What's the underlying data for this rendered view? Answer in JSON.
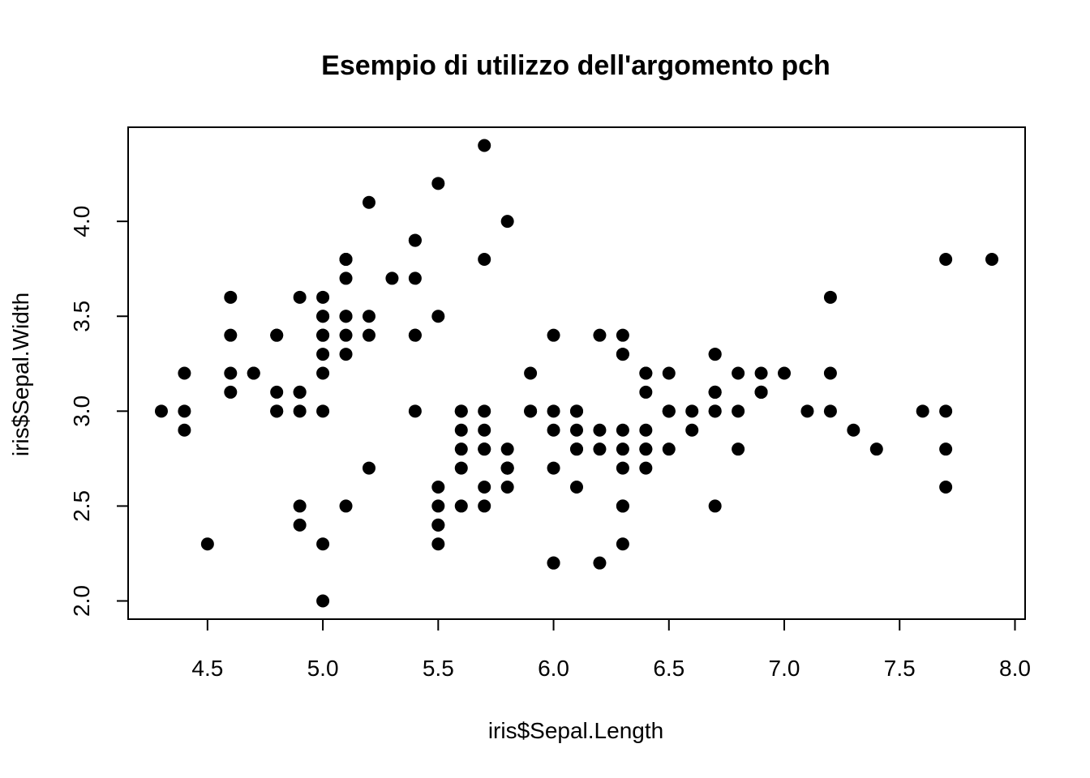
{
  "chart_data": {
    "type": "scatter",
    "title": "Esempio di utilizzo dell'argomento pch",
    "xlabel": "iris$Sepal.Length",
    "ylabel": "iris$Sepal.Width",
    "xlim": [
      4.3,
      7.9
    ],
    "ylim": [
      2.0,
      4.4
    ],
    "x_ticks": [
      4.5,
      5.0,
      5.5,
      6.0,
      6.5,
      7.0,
      7.5,
      8.0
    ],
    "x_tick_labels": [
      "4.5",
      "5.0",
      "5.5",
      "6.0",
      "6.5",
      "7.0",
      "7.5",
      "8.0"
    ],
    "y_ticks": [
      2.0,
      2.5,
      3.0,
      3.5,
      4.0
    ],
    "y_tick_labels": [
      "2.0",
      "2.5",
      "3.0",
      "3.5",
      "4.0"
    ],
    "grid": false,
    "marker": "filled-circle",
    "marker_color": "#000000",
    "points": [
      [
        5.1,
        3.5
      ],
      [
        4.9,
        3.0
      ],
      [
        4.7,
        3.2
      ],
      [
        4.6,
        3.1
      ],
      [
        5.0,
        3.6
      ],
      [
        5.4,
        3.9
      ],
      [
        4.6,
        3.4
      ],
      [
        5.0,
        3.4
      ],
      [
        4.4,
        2.9
      ],
      [
        4.9,
        3.1
      ],
      [
        5.4,
        3.7
      ],
      [
        4.8,
        3.4
      ],
      [
        4.8,
        3.0
      ],
      [
        4.3,
        3.0
      ],
      [
        5.8,
        4.0
      ],
      [
        5.7,
        4.4
      ],
      [
        5.4,
        3.9
      ],
      [
        5.1,
        3.5
      ],
      [
        5.7,
        3.8
      ],
      [
        5.1,
        3.8
      ],
      [
        5.4,
        3.4
      ],
      [
        5.1,
        3.7
      ],
      [
        4.6,
        3.6
      ],
      [
        5.1,
        3.3
      ],
      [
        4.8,
        3.4
      ],
      [
        5.0,
        3.0
      ],
      [
        5.0,
        3.4
      ],
      [
        5.2,
        3.5
      ],
      [
        5.2,
        3.4
      ],
      [
        4.7,
        3.2
      ],
      [
        4.8,
        3.1
      ],
      [
        5.4,
        3.4
      ],
      [
        5.2,
        4.1
      ],
      [
        5.5,
        4.2
      ],
      [
        4.9,
        3.1
      ],
      [
        5.0,
        3.2
      ],
      [
        5.5,
        3.5
      ],
      [
        4.9,
        3.6
      ],
      [
        4.4,
        3.0
      ],
      [
        5.1,
        3.4
      ],
      [
        5.0,
        3.5
      ],
      [
        4.5,
        2.3
      ],
      [
        4.4,
        3.2
      ],
      [
        5.0,
        3.5
      ],
      [
        5.1,
        3.8
      ],
      [
        4.8,
        3.0
      ],
      [
        5.1,
        3.8
      ],
      [
        4.6,
        3.2
      ],
      [
        5.3,
        3.7
      ],
      [
        5.0,
        3.3
      ],
      [
        7.0,
        3.2
      ],
      [
        6.4,
        3.2
      ],
      [
        6.9,
        3.1
      ],
      [
        5.5,
        2.3
      ],
      [
        6.5,
        2.8
      ],
      [
        5.7,
        2.8
      ],
      [
        6.3,
        3.3
      ],
      [
        4.9,
        2.4
      ],
      [
        6.6,
        2.9
      ],
      [
        5.2,
        2.7
      ],
      [
        5.0,
        2.0
      ],
      [
        5.9,
        3.0
      ],
      [
        6.0,
        2.2
      ],
      [
        6.1,
        2.9
      ],
      [
        5.6,
        2.9
      ],
      [
        6.7,
        3.1
      ],
      [
        5.6,
        3.0
      ],
      [
        5.8,
        2.7
      ],
      [
        6.2,
        2.2
      ],
      [
        5.6,
        2.5
      ],
      [
        5.9,
        3.2
      ],
      [
        6.1,
        2.8
      ],
      [
        6.3,
        2.5
      ],
      [
        6.1,
        2.8
      ],
      [
        6.4,
        2.9
      ],
      [
        6.6,
        3.0
      ],
      [
        6.8,
        2.8
      ],
      [
        6.7,
        3.0
      ],
      [
        6.0,
        2.9
      ],
      [
        5.7,
        2.6
      ],
      [
        5.5,
        2.4
      ],
      [
        5.5,
        2.4
      ],
      [
        5.8,
        2.7
      ],
      [
        6.0,
        2.7
      ],
      [
        5.4,
        3.0
      ],
      [
        6.0,
        3.4
      ],
      [
        6.7,
        3.1
      ],
      [
        6.3,
        2.3
      ],
      [
        5.6,
        3.0
      ],
      [
        5.5,
        2.5
      ],
      [
        5.5,
        2.6
      ],
      [
        6.1,
        3.0
      ],
      [
        5.8,
        2.6
      ],
      [
        5.0,
        2.3
      ],
      [
        5.6,
        2.7
      ],
      [
        5.7,
        3.0
      ],
      [
        5.7,
        2.9
      ],
      [
        6.2,
        2.9
      ],
      [
        5.1,
        2.5
      ],
      [
        5.7,
        2.8
      ],
      [
        6.3,
        3.3
      ],
      [
        5.8,
        2.7
      ],
      [
        7.1,
        3.0
      ],
      [
        6.3,
        2.9
      ],
      [
        6.5,
        3.0
      ],
      [
        7.6,
        3.0
      ],
      [
        4.9,
        2.5
      ],
      [
        7.3,
        2.9
      ],
      [
        6.7,
        2.5
      ],
      [
        7.2,
        3.6
      ],
      [
        6.5,
        3.2
      ],
      [
        6.4,
        2.7
      ],
      [
        6.8,
        3.0
      ],
      [
        5.7,
        2.5
      ],
      [
        5.8,
        2.8
      ],
      [
        6.4,
        3.2
      ],
      [
        6.5,
        3.0
      ],
      [
        7.7,
        3.8
      ],
      [
        7.7,
        2.6
      ],
      [
        6.0,
        2.2
      ],
      [
        6.9,
        3.2
      ],
      [
        5.6,
        2.8
      ],
      [
        7.7,
        2.8
      ],
      [
        6.3,
        2.7
      ],
      [
        6.7,
        3.3
      ],
      [
        7.2,
        3.2
      ],
      [
        6.2,
        2.8
      ],
      [
        6.1,
        3.0
      ],
      [
        6.4,
        2.8
      ],
      [
        7.2,
        3.0
      ],
      [
        7.4,
        2.8
      ],
      [
        7.9,
        3.8
      ],
      [
        6.4,
        2.8
      ],
      [
        6.3,
        2.8
      ],
      [
        6.1,
        2.6
      ],
      [
        7.7,
        3.0
      ],
      [
        6.3,
        3.4
      ],
      [
        6.4,
        3.1
      ],
      [
        6.0,
        3.0
      ],
      [
        6.9,
        3.1
      ],
      [
        6.7,
        3.1
      ],
      [
        6.9,
        3.1
      ],
      [
        5.8,
        2.7
      ],
      [
        6.8,
        3.2
      ],
      [
        6.7,
        3.3
      ],
      [
        6.7,
        3.0
      ],
      [
        6.3,
        2.5
      ],
      [
        6.5,
        3.0
      ],
      [
        6.2,
        3.4
      ],
      [
        5.9,
        3.0
      ]
    ]
  }
}
